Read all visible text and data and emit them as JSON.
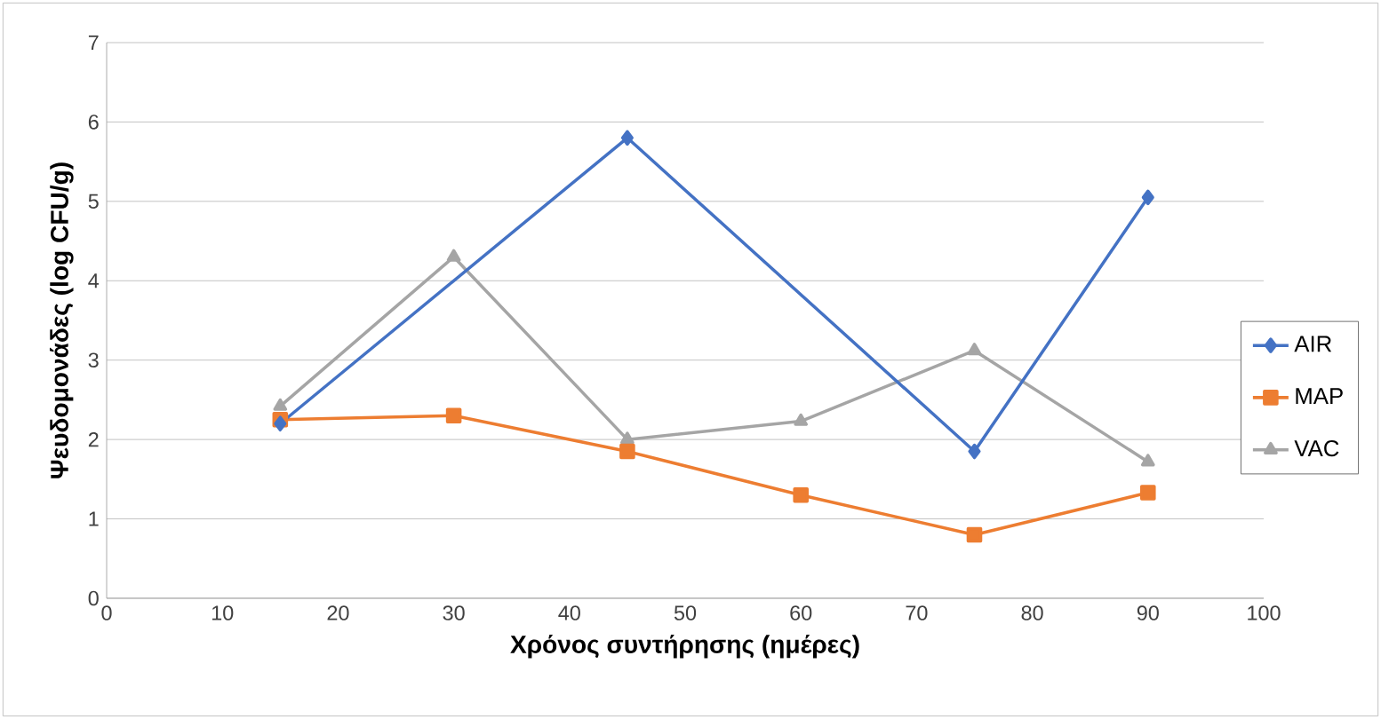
{
  "chart_data": {
    "type": "line",
    "xlabel": "Χρόνος συντήρησης (ημέρες)",
    "ylabel": "Ψευδομονάδες (log CFU/g)",
    "xlim": [
      0,
      100
    ],
    "xticks": [
      0,
      10,
      20,
      30,
      40,
      50,
      60,
      70,
      80,
      90,
      100
    ],
    "ylim": [
      0,
      7
    ],
    "yticks": [
      0,
      1,
      2,
      3,
      4,
      5,
      6,
      7
    ],
    "grid": "y",
    "legend": "right",
    "series": [
      {
        "name": "AIR",
        "color": "#4472c4",
        "marker": "diamond",
        "x": [
          15,
          45,
          75,
          90
        ],
        "values": [
          2.2,
          5.8,
          1.85,
          5.05
        ]
      },
      {
        "name": "MAP",
        "color": "#ed7d31",
        "marker": "square",
        "x": [
          15,
          30,
          45,
          60,
          75,
          90
        ],
        "values": [
          2.25,
          2.3,
          1.85,
          1.3,
          0.8,
          1.33
        ]
      },
      {
        "name": "VAC",
        "color": "#a5a5a5",
        "marker": "triangle",
        "x": [
          15,
          30,
          45,
          60,
          75,
          90
        ],
        "values": [
          2.42,
          4.3,
          2.0,
          2.23,
          3.12,
          1.72
        ]
      }
    ]
  }
}
